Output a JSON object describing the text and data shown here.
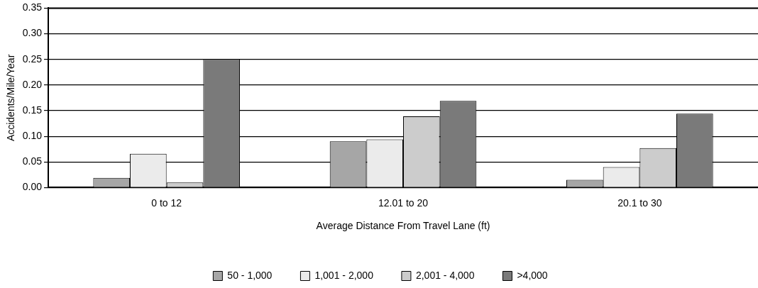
{
  "chart_data": {
    "type": "bar",
    "xlabel": "Average Distance From Travel Lane (ft)",
    "ylabel": "Accidents/Mile/Year",
    "categories": [
      "0 to 12",
      "12.01 to 20",
      "20.1 to 30"
    ],
    "series": [
      {
        "name": "50 - 1,000",
        "color": "#a6a6a6",
        "values": [
          0.019,
          0.09,
          0.015
        ]
      },
      {
        "name": "1,001 - 2,000",
        "color": "#ebebeb",
        "values": [
          0.066,
          0.094,
          0.04
        ]
      },
      {
        "name": "2,001 - 4,000",
        "color": "#cccccc",
        "values": [
          0.01,
          0.139,
          0.077
        ]
      },
      {
        "name": ">4,000",
        "color": "#7a7a7a",
        "values": [
          0.251,
          0.169,
          0.144
        ]
      }
    ],
    "ylim": [
      0,
      0.35
    ],
    "yticks": [
      {
        "value": 0,
        "label": "0.00"
      },
      {
        "value": 0.05,
        "label": "0.05"
      },
      {
        "value": 0.1,
        "label": "0.10"
      },
      {
        "value": 0.15,
        "label": "0.15"
      },
      {
        "value": 0.2,
        "label": "0.20"
      },
      {
        "value": 0.25,
        "label": "0.25"
      },
      {
        "value": 0.3,
        "label": "0.30"
      },
      {
        "value": 0.35,
        "label": "0.35"
      }
    ],
    "grid": "y",
    "legend": "bottom"
  }
}
